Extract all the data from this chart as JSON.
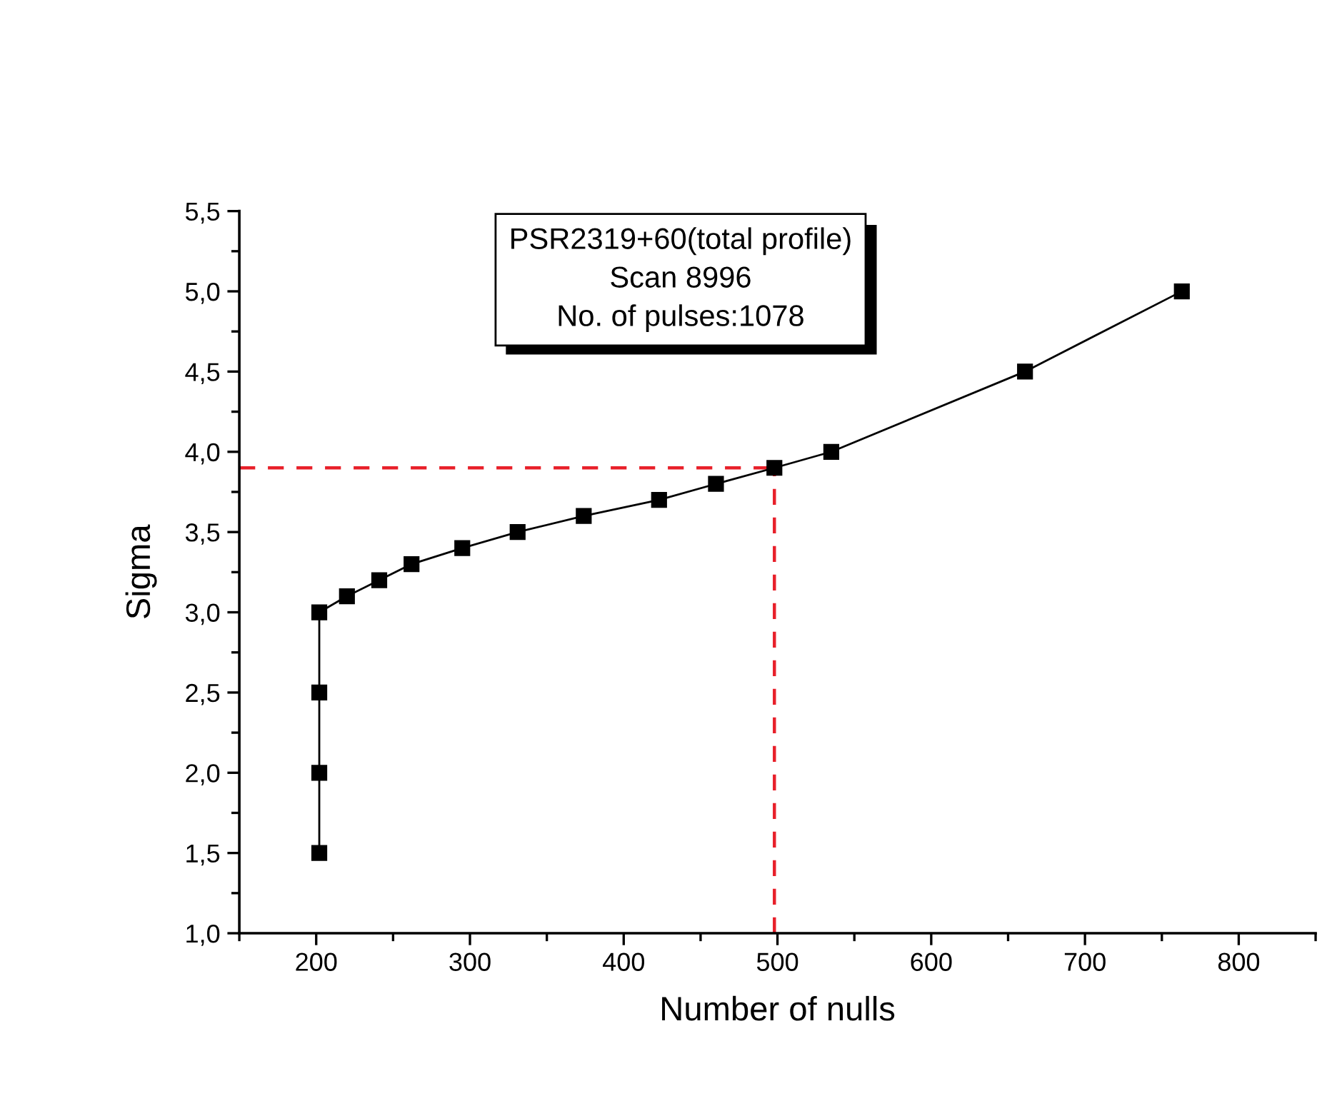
{
  "chart_data": {
    "type": "line",
    "xlabel": "Number of nulls",
    "ylabel": "Sigma",
    "annotations": [
      "PSR2319+60(total profile)\nScan 8996\nNo. of pulses:1078"
    ],
    "x": [
      202,
      202,
      202,
      202,
      220,
      241,
      262,
      295,
      331,
      374,
      423,
      460,
      498,
      535,
      661,
      763
    ],
    "series": [
      {
        "color": "#000000",
        "values": [
          1.5,
          2.0,
          2.5,
          3.0,
          3.1,
          3.2,
          3.3,
          3.4,
          3.5,
          3.6,
          3.7,
          3.8,
          3.9,
          4.0,
          4.5,
          5.0
        ]
      }
    ],
    "marker": "square",
    "line_style": "solid",
    "grid": false,
    "xlim": [
      150,
      850
    ],
    "xticks": [
      200,
      300,
      400,
      500,
      600,
      700,
      800
    ],
    "ylim": [
      1.0,
      5.5
    ],
    "yticks": [
      {
        "value": 1.0,
        "label": "1,0"
      },
      {
        "value": 1.5,
        "label": "1,5"
      },
      {
        "value": 2.0,
        "label": "2,0"
      },
      {
        "value": 2.5,
        "label": "2,5"
      },
      {
        "value": 3.0,
        "label": "3,0"
      },
      {
        "value": 3.5,
        "label": "3,5"
      },
      {
        "value": 4.0,
        "label": "4,0"
      },
      {
        "value": 4.5,
        "label": "4,5"
      },
      {
        "value": 5.0,
        "label": "5,0"
      },
      {
        "value": 5.5,
        "label": "5,5"
      }
    ],
    "ref_lines": [
      {
        "axis": "y",
        "value": 3.9,
        "color": "#e8202a",
        "line_style": "dashed"
      },
      {
        "axis": "x",
        "value": 498,
        "color": "#e8202a",
        "line_style": "dashed"
      }
    ]
  }
}
